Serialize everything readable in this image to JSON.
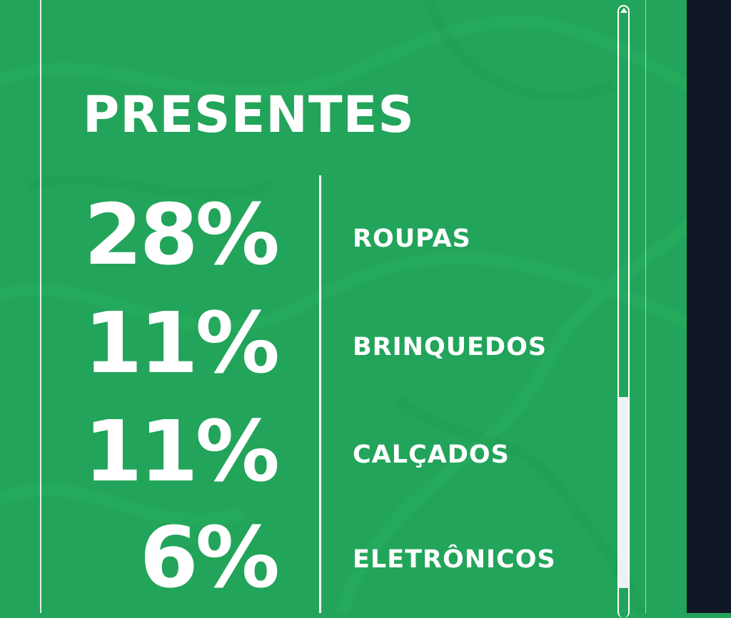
{
  "title": "PRESENTES",
  "stats": [
    {
      "percent": "28%",
      "label": "ROUPAS"
    },
    {
      "percent": "11%",
      "label": "BRINQUEDOS"
    },
    {
      "percent": "11%",
      "label": "CALÇADOS"
    },
    {
      "percent": "6%",
      "label": "ELETRÔNICOS"
    }
  ],
  "colors": {
    "background": "#22a45a",
    "text": "#ffffff",
    "side_panel": "#0f1724"
  }
}
